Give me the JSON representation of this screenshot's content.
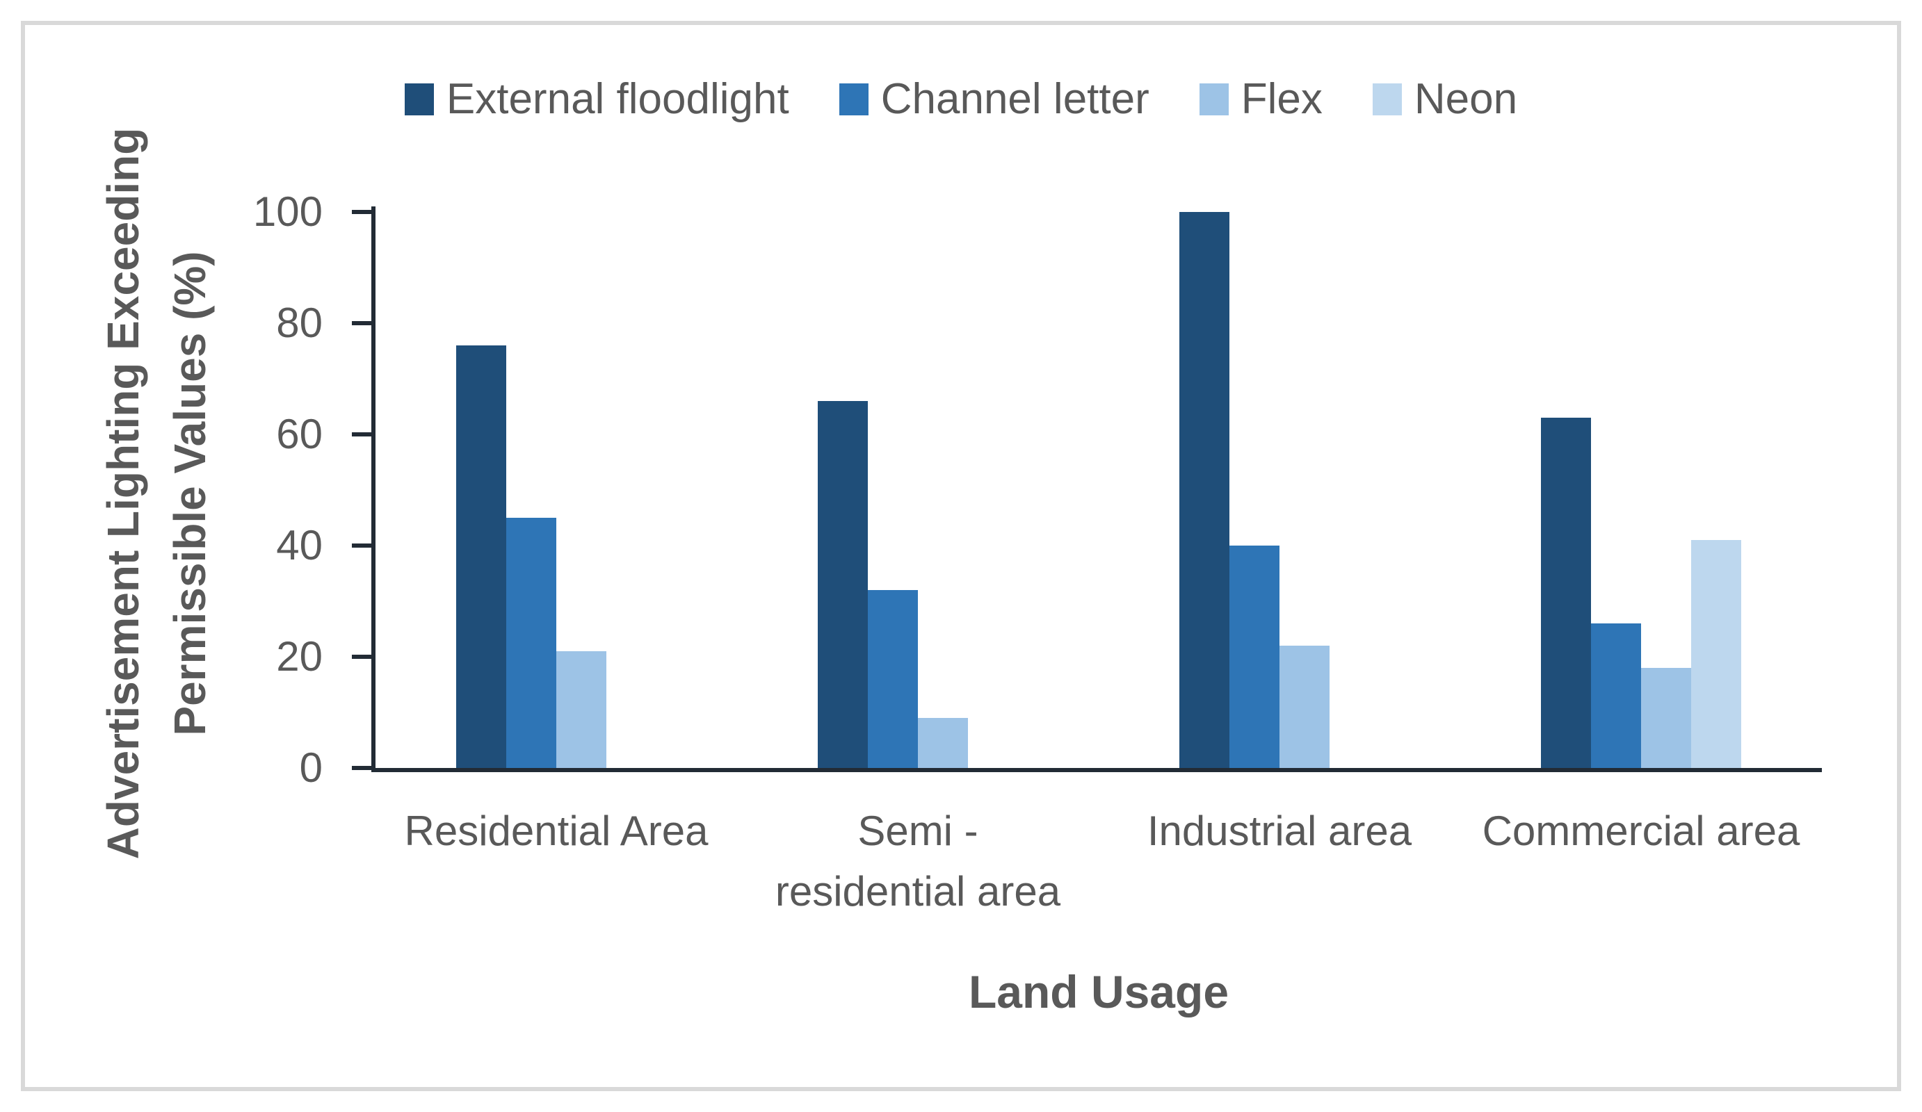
{
  "colors": {
    "frame_border": "#D9D9D9",
    "background": "#FFFFFF"
  },
  "chart_data": {
    "type": "bar",
    "title": "",
    "categories": [
      "Residential Area",
      "Semi -\nresidential area",
      "Industrial area",
      "Commercial area"
    ],
    "series": [
      {
        "name": "External floodlight",
        "color": "#1F4E79",
        "values": [
          76,
          66,
          100,
          63
        ]
      },
      {
        "name": "Channel letter",
        "color": "#2E75B6",
        "values": [
          45,
          32,
          40,
          26
        ]
      },
      {
        "name": "Flex",
        "color": "#9DC3E6",
        "values": [
          21,
          9,
          22,
          18
        ]
      },
      {
        "name": "Neon",
        "color": "#BDD7EE",
        "values": [
          0,
          0,
          0,
          41
        ]
      }
    ],
    "xlabel": "Land Usage",
    "ylabel": "Advertisement Lighting Exceeding\nPermissible Values (%)",
    "ylim": [
      0,
      100
    ],
    "yticks": [
      0,
      20,
      40,
      60,
      80,
      100
    ],
    "grid": false,
    "legend_position": "top",
    "axis_color": "#222B35",
    "text_color": "#595959"
  }
}
